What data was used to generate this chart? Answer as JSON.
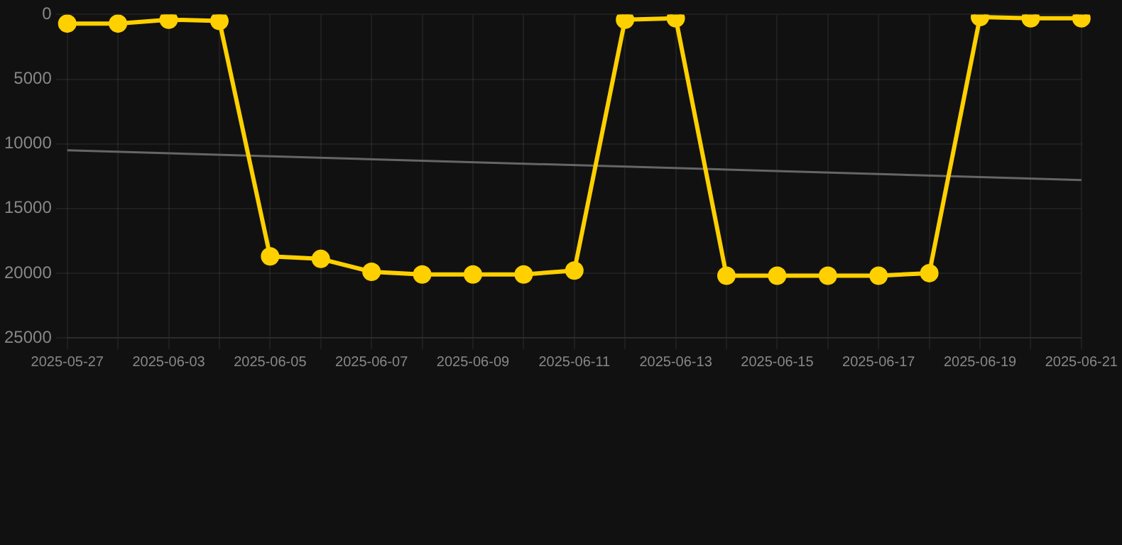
{
  "chart_data": {
    "type": "line",
    "categories": [
      "2025-05-27",
      null,
      "2025-06-03",
      null,
      "2025-06-05",
      null,
      "2025-06-07",
      null,
      "2025-06-09",
      null,
      "2025-06-11",
      null,
      "2025-06-13",
      null,
      "2025-06-15",
      null,
      "2025-06-17",
      null,
      "2025-06-19",
      null,
      "2025-06-21"
    ],
    "series": [
      {
        "color": "#ffd000",
        "marker": "circle",
        "values": [
          700,
          700,
          400,
          500,
          18700,
          18900,
          19900,
          20100,
          20100,
          20100,
          19800,
          400,
          300,
          20200,
          20200,
          20200,
          20200,
          20000,
          200,
          300,
          300
        ]
      },
      {
        "color": "#666666",
        "marker": "none",
        "values": [
          10500,
          null,
          null,
          null,
          null,
          null,
          null,
          null,
          null,
          null,
          null,
          null,
          null,
          null,
          null,
          null,
          null,
          null,
          null,
          null,
          12800
        ]
      }
    ],
    "ylim": [
      25000,
      0
    ],
    "yticks": [
      0,
      5000,
      10000,
      15000,
      20000,
      25000
    ],
    "grid": true
  }
}
